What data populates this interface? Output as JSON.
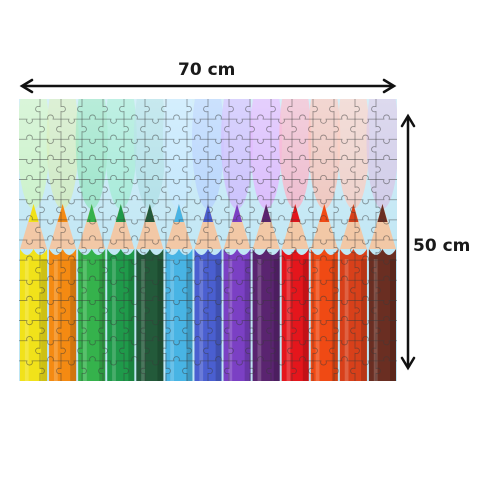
{
  "dimensions": {
    "width_label": "70 cm",
    "height_label": "50 cm"
  },
  "image": {
    "subject": "jigsaw-puzzle-colored-pencils",
    "pencil_colors": [
      "#f1e21a",
      "#f48a12",
      "#35b24c",
      "#1f9a4a",
      "#235a3a",
      "#48b4e4",
      "#4a5fd0",
      "#7b40c4",
      "#5a2470",
      "#e4161c",
      "#f04a14",
      "#d8401a",
      "#6a2e22"
    ],
    "mist_colors": [
      "#c8f4b0",
      "#cfe8a8",
      "#7fe0b0",
      "#8fe8c8",
      "#9fd8e0",
      "#bce4ff",
      "#a8c8ff",
      "#c8a8ff",
      "#e0a0ff",
      "#ffa0b8",
      "#ffb0a0",
      "#ffc0b0",
      "#d0b8e0"
    ]
  }
}
